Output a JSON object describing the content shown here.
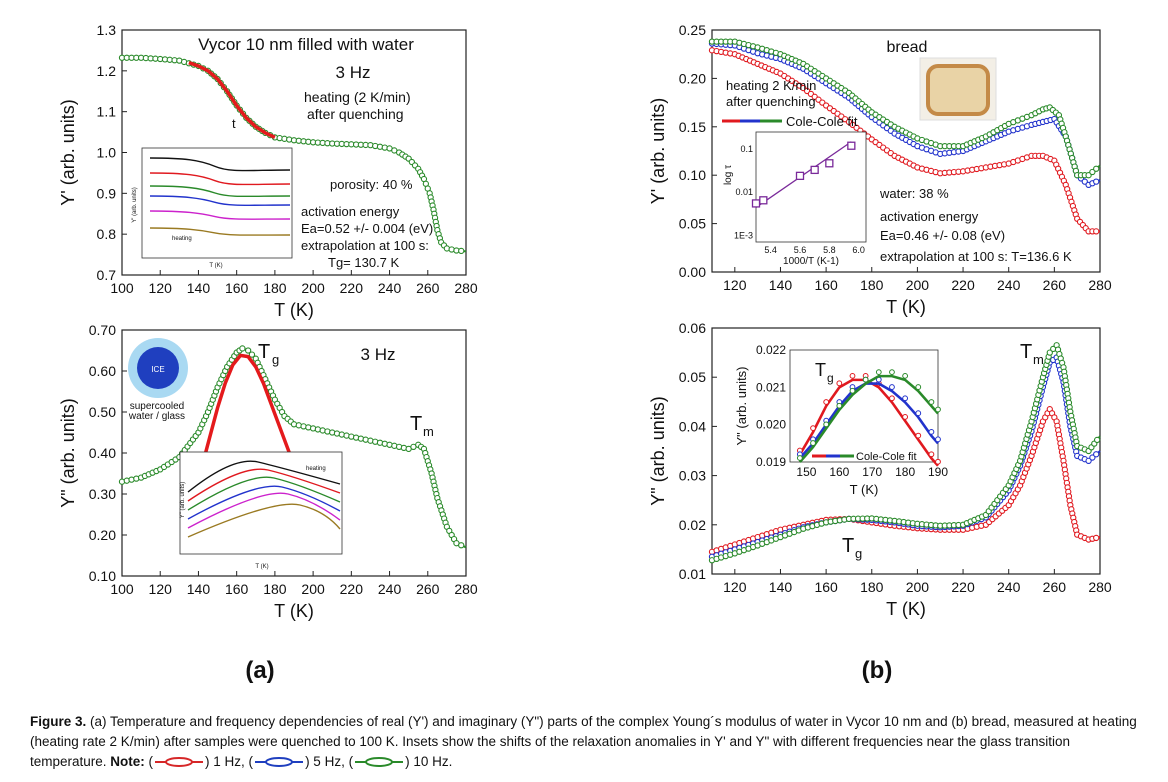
{
  "panel_labels": [
    "(a)",
    "(b)"
  ],
  "caption": {
    "prefix": "Figure 3.",
    "text": " (a) Temperature and frequency dependencies of real (Y') and imaginary (Y\") parts of the complex Young´s modulus of water in Vycor 10 nm and (b) bread, measured at heating (heating rate 2 K/min) after samples were quenched to 100 K. Insets show the shifts of the relaxation anomalies in Y' and Y\" with different frequencies near the glass transition temperature. ",
    "note_label": "Note:",
    "legend": [
      {
        "label": ") 1 Hz, (",
        "color": "#d62728"
      },
      {
        "label": ") 5 Hz, (",
        "color": "#1f3fbf"
      },
      {
        "label": ") 10 Hz.",
        "color": "#2a8a2a"
      }
    ]
  },
  "colors": {
    "red": "#e0191f",
    "blue": "#2233cc",
    "green": "#2a8a2a",
    "fit_red": "#e41a1c"
  },
  "chart_data": [
    {
      "id": "a_top",
      "type": "line",
      "xlabel": "T (K)",
      "ylabel": "Y' (arb. units)",
      "xlim": [
        100,
        280
      ],
      "ylim": [
        0.7,
        1.3
      ],
      "xticks": [
        100,
        120,
        140,
        160,
        180,
        200,
        220,
        240,
        260,
        280
      ],
      "yticks": [
        0.7,
        0.8,
        0.9,
        1.0,
        1.1,
        1.2,
        1.3
      ],
      "texts": [
        "Vycor 10 nm filled with water",
        "3 Hz",
        "heating (2 K/min)",
        "after quenching",
        "t",
        "porosity: 40 %",
        "activation energy",
        "Ea=0.52 +/- 0.004 (eV)",
        "extrapolation at 100 s:",
        "Tg= 130.7 K"
      ],
      "series": [
        {
          "color": "green",
          "x": [
            100,
            110,
            120,
            130,
            140,
            145,
            150,
            155,
            160,
            165,
            170,
            175,
            180,
            190,
            200,
            210,
            220,
            230,
            240,
            245,
            250,
            255,
            258,
            261,
            263,
            265,
            267,
            270,
            275,
            280
          ],
          "y": [
            1.232,
            1.232,
            1.229,
            1.225,
            1.212,
            1.2,
            1.18,
            1.15,
            1.115,
            1.085,
            1.063,
            1.048,
            1.037,
            1.03,
            1.025,
            1.022,
            1.02,
            1.018,
            1.01,
            1.0,
            0.985,
            0.96,
            0.935,
            0.9,
            0.86,
            0.81,
            0.78,
            0.765,
            0.76,
            0.758
          ]
        },
        {
          "color": "fit_red",
          "fit": true,
          "x": [
            135,
            140,
            145,
            150,
            155,
            160,
            165,
            170,
            175,
            180
          ],
          "y": [
            1.22,
            1.212,
            1.2,
            1.18,
            1.15,
            1.115,
            1.085,
            1.063,
            1.048,
            1.037
          ]
        }
      ]
    },
    {
      "id": "a_bottom",
      "type": "line",
      "xlabel": "T (K)",
      "ylabel": "Y\" (arb. units)",
      "xlim": [
        100,
        280
      ],
      "ylim": [
        0.1,
        0.7
      ],
      "xticks": [
        100,
        120,
        140,
        160,
        180,
        200,
        220,
        240,
        260,
        280
      ],
      "yticks": [
        0.1,
        0.2,
        0.3,
        0.4,
        0.5,
        0.6,
        0.7
      ],
      "ytickfmt": [
        "0.10",
        "0.20",
        "0.30",
        "0.40",
        "0.50",
        "0.60",
        "0.70"
      ],
      "texts": [
        "Tg",
        "3 Hz",
        "Tm",
        "ICE",
        "supercooled",
        "water / glass"
      ],
      "series": [
        {
          "color": "green",
          "x": [
            100,
            110,
            120,
            130,
            140,
            145,
            150,
            155,
            160,
            163,
            166,
            170,
            175,
            180,
            185,
            190,
            200,
            210,
            220,
            230,
            240,
            245,
            250,
            255,
            258,
            262,
            265,
            270,
            275,
            280
          ],
          "y": [
            0.33,
            0.34,
            0.36,
            0.39,
            0.45,
            0.5,
            0.56,
            0.61,
            0.645,
            0.655,
            0.65,
            0.63,
            0.58,
            0.53,
            0.49,
            0.47,
            0.46,
            0.45,
            0.44,
            0.43,
            0.42,
            0.415,
            0.41,
            0.42,
            0.41,
            0.35,
            0.29,
            0.22,
            0.18,
            0.17
          ]
        },
        {
          "color": "fit_red",
          "fit": true,
          "x": [
            142,
            146,
            150,
            154,
            158,
            162,
            166,
            170,
            174,
            178,
            182,
            186,
            190
          ],
          "y": [
            0.37,
            0.44,
            0.51,
            0.57,
            0.615,
            0.638,
            0.635,
            0.61,
            0.57,
            0.52,
            0.47,
            0.42,
            0.37
          ]
        }
      ]
    },
    {
      "id": "b_top",
      "type": "line",
      "xlabel": "T (K)",
      "ylabel": "Y' (arb. units)",
      "xlim": [
        110,
        280
      ],
      "ylim": [
        0.0,
        0.25
      ],
      "xticks": [
        120,
        140,
        160,
        180,
        200,
        220,
        240,
        260,
        280
      ],
      "yticks": [
        0.0,
        0.05,
        0.1,
        0.15,
        0.2,
        0.25
      ],
      "ytickfmt": [
        "0.00",
        "0.05",
        "0.10",
        "0.15",
        "0.20",
        "0.25"
      ],
      "texts": [
        "bread",
        "heating 2 K/min",
        "after quenching",
        "Cole-Cole fit",
        "water: 38 %",
        "activation energy",
        "Ea=0.46 +/- 0.08 (eV)",
        "extrapolation at 100 s: T=136.6 K"
      ],
      "series": [
        {
          "color": "red",
          "x": [
            110,
            120,
            130,
            140,
            150,
            160,
            170,
            180,
            190,
            200,
            210,
            220,
            230,
            240,
            250,
            255,
            260,
            265,
            270,
            275,
            280
          ],
          "y": [
            0.229,
            0.225,
            0.215,
            0.205,
            0.19,
            0.172,
            0.155,
            0.137,
            0.12,
            0.108,
            0.102,
            0.104,
            0.108,
            0.112,
            0.12,
            0.12,
            0.115,
            0.09,
            0.055,
            0.042,
            0.042
          ]
        },
        {
          "color": "blue",
          "x": [
            110,
            120,
            130,
            140,
            150,
            160,
            170,
            180,
            190,
            200,
            210,
            220,
            230,
            240,
            250,
            255,
            260,
            265,
            270,
            275,
            280
          ],
          "y": [
            0.236,
            0.234,
            0.226,
            0.22,
            0.21,
            0.195,
            0.18,
            0.16,
            0.143,
            0.13,
            0.122,
            0.125,
            0.135,
            0.145,
            0.152,
            0.155,
            0.158,
            0.14,
            0.1,
            0.09,
            0.095
          ]
        },
        {
          "color": "green",
          "x": [
            110,
            120,
            130,
            140,
            150,
            160,
            170,
            180,
            190,
            200,
            210,
            220,
            230,
            240,
            250,
            255,
            258,
            262,
            265,
            270,
            275,
            280
          ],
          "y": [
            0.238,
            0.238,
            0.232,
            0.225,
            0.215,
            0.2,
            0.185,
            0.165,
            0.15,
            0.138,
            0.13,
            0.13,
            0.14,
            0.153,
            0.162,
            0.168,
            0.17,
            0.162,
            0.14,
            0.1,
            0.1,
            0.11
          ]
        }
      ],
      "inset": {
        "xlabel": "1000/T (K-1)",
        "ylabel": "log τ",
        "xticks": [
          "5.4",
          "5.6",
          "5.8",
          "6.0"
        ],
        "yticks": [
          "1E-3",
          "0.01",
          "0.1"
        ],
        "x": [
          5.3,
          5.35,
          5.6,
          5.7,
          5.8,
          5.95
        ],
        "y": [
          0.0055,
          0.0065,
          0.024,
          0.033,
          0.047,
          0.12
        ]
      }
    },
    {
      "id": "b_bottom",
      "type": "line",
      "xlabel": "T (K)",
      "ylabel": "Y\" (arb. units)",
      "xlim": [
        110,
        280
      ],
      "ylim": [
        0.01,
        0.06
      ],
      "xticks": [
        120,
        140,
        160,
        180,
        200,
        220,
        240,
        260,
        280
      ],
      "yticks": [
        0.01,
        0.02,
        0.03,
        0.04,
        0.05,
        0.06
      ],
      "ytickfmt": [
        "0.01",
        "0.02",
        "0.03",
        "0.04",
        "0.05",
        "0.06"
      ],
      "texts": [
        "Tm",
        "Tg",
        "Tg",
        "Cole-Cole fit"
      ],
      "series": [
        {
          "color": "red",
          "x": [
            110,
            120,
            130,
            140,
            150,
            160,
            170,
            180,
            190,
            200,
            210,
            220,
            230,
            240,
            245,
            250,
            255,
            258,
            261,
            264,
            267,
            270,
            275,
            280
          ],
          "y": [
            0.0145,
            0.016,
            0.0175,
            0.019,
            0.02,
            0.021,
            0.0212,
            0.0205,
            0.0198,
            0.0193,
            0.019,
            0.019,
            0.02,
            0.024,
            0.028,
            0.034,
            0.041,
            0.0435,
            0.041,
            0.033,
            0.024,
            0.018,
            0.017,
            0.0175
          ]
        },
        {
          "color": "blue",
          "x": [
            110,
            120,
            130,
            140,
            150,
            160,
            170,
            180,
            190,
            200,
            210,
            220,
            230,
            240,
            245,
            250,
            255,
            258,
            261,
            264,
            267,
            270,
            275,
            280
          ],
          "y": [
            0.0135,
            0.015,
            0.0165,
            0.018,
            0.0195,
            0.0205,
            0.0212,
            0.021,
            0.0205,
            0.0198,
            0.0195,
            0.0198,
            0.0215,
            0.027,
            0.032,
            0.039,
            0.048,
            0.053,
            0.054,
            0.049,
            0.04,
            0.034,
            0.033,
            0.035
          ]
        },
        {
          "color": "green",
          "x": [
            110,
            120,
            130,
            140,
            150,
            160,
            170,
            180,
            190,
            200,
            210,
            220,
            230,
            240,
            245,
            250,
            255,
            258,
            261,
            264,
            267,
            270,
            275,
            280
          ],
          "y": [
            0.0128,
            0.0142,
            0.0158,
            0.0175,
            0.0192,
            0.0205,
            0.0212,
            0.0213,
            0.0208,
            0.0202,
            0.0198,
            0.02,
            0.022,
            0.028,
            0.033,
            0.041,
            0.05,
            0.055,
            0.0565,
            0.052,
            0.043,
            0.036,
            0.035,
            0.038
          ]
        }
      ],
      "inset": {
        "xlabel": "T (K)",
        "ylabel": "Y\" (arb. units)",
        "xlim": [
          145,
          190
        ],
        "ylim": [
          0.019,
          0.022
        ],
        "xticks": [
          150,
          160,
          170,
          180,
          190
        ],
        "yticks": [
          0.019,
          0.02,
          0.021,
          0.022
        ],
        "ytickfmt": [
          "0.019",
          "0.020",
          "0.021",
          "0.022"
        ],
        "series": [
          {
            "color": "red",
            "x": [
              148,
              152,
              156,
              160,
              164,
              168,
              172,
              176,
              180,
              184,
              188,
              190
            ],
            "y": [
              0.0192,
              0.0198,
              0.0205,
              0.021,
              0.0212,
              0.0212,
              0.021,
              0.0206,
              0.0201,
              0.0196,
              0.0191,
              0.0189
            ]
          },
          {
            "color": "blue",
            "x": [
              148,
              152,
              156,
              160,
              164,
              168,
              172,
              176,
              180,
              184,
              188,
              190
            ],
            "y": [
              0.0191,
              0.0195,
              0.02,
              0.0205,
              0.0209,
              0.0211,
              0.0211,
              0.0209,
              0.0206,
              0.0202,
              0.0197,
              0.0195
            ]
          },
          {
            "color": "green",
            "x": [
              148,
              152,
              156,
              160,
              164,
              168,
              172,
              176,
              180,
              184,
              188,
              190
            ],
            "y": [
              0.019,
              0.0194,
              0.0199,
              0.0204,
              0.0208,
              0.0211,
              0.0213,
              0.0213,
              0.0212,
              0.0209,
              0.0205,
              0.0203
            ]
          }
        ]
      }
    }
  ],
  "insets_a": {
    "top": {
      "texts": [
        "heating"
      ],
      "xlabel": "T (K)",
      "ylabel": "Y' (arb. units)"
    },
    "bottom": {
      "texts": [
        "heating"
      ],
      "xlabel": "T (K)",
      "ylabel": "Y\" (arb. units)"
    }
  }
}
